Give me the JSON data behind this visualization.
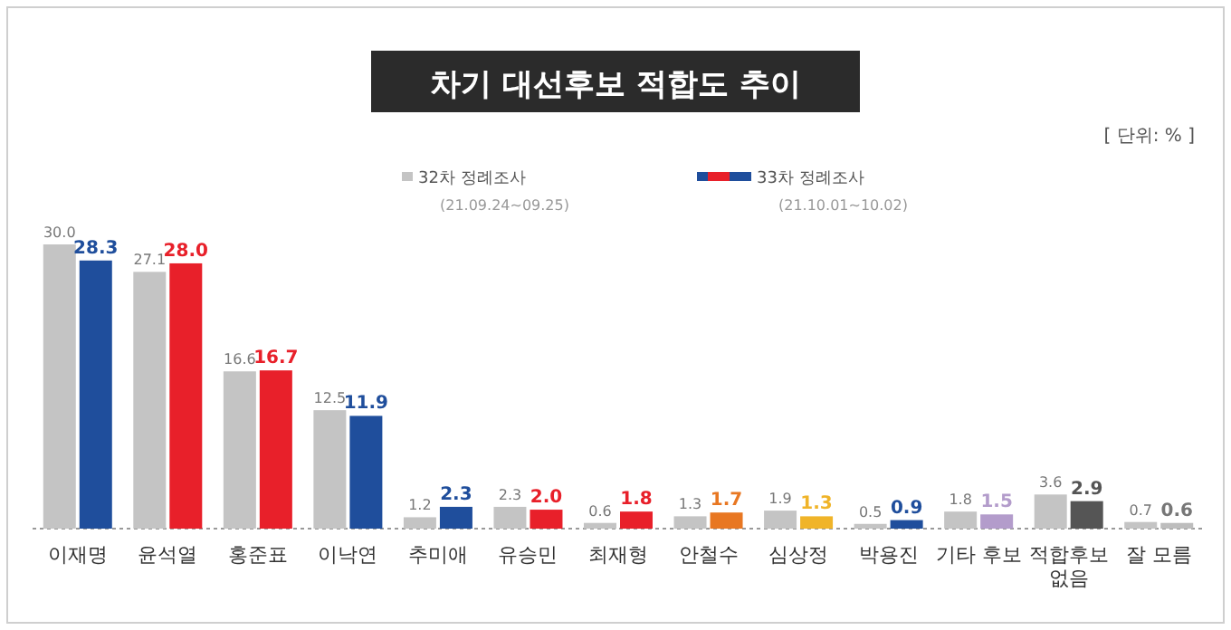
{
  "chart_data": {
    "type": "bar",
    "title": "차기 대선후보 적합도 추이",
    "annotations": [
      "[ 단위: % ]"
    ],
    "categories": [
      "이재명",
      "윤석열",
      "홍준표",
      "이낙연",
      "추미애",
      "유승민",
      "최재형",
      "안철수",
      "심상정",
      "박용진",
      "기타 후보",
      "적합후보 없음",
      "잘 모름"
    ],
    "series": [
      {
        "name": "32차 정례조사 (21.09.24~09.25)",
        "color": "#c4c4c4",
        "values": [
          30.0,
          27.1,
          16.6,
          12.5,
          1.2,
          2.3,
          0.6,
          1.3,
          1.9,
          0.5,
          1.8,
          3.6,
          0.7
        ],
        "value_labels": [
          "30.0",
          "27.1",
          "16.6",
          "12.5",
          "1.2",
          "2.3",
          "0.6",
          "1.3",
          "1.9",
          "0.5",
          "1.8",
          "3.6",
          "0.7"
        ]
      },
      {
        "name": "33차 정례조사 (21.10.01~10.02)",
        "colors": [
          "#1f4e9c",
          "#e8202a",
          "#e8202a",
          "#1f4e9c",
          "#1f4e9c",
          "#e8202a",
          "#e8202a",
          "#e87722",
          "#f0b429",
          "#1f4e9c",
          "#b39ccb",
          "#555555",
          "#bdbdbd"
        ],
        "values": [
          28.3,
          28.0,
          16.7,
          11.9,
          2.3,
          2.0,
          1.8,
          1.7,
          1.3,
          0.9,
          1.5,
          2.9,
          0.6
        ],
        "value_labels": [
          "28.3",
          "28.0",
          "16.7",
          "11.9",
          "2.3",
          "2.0",
          "1.8",
          "1.7",
          "1.3",
          "0.9",
          "1.5",
          "2.9",
          "0.6"
        ]
      }
    ],
    "legend": "top"
  }
}
